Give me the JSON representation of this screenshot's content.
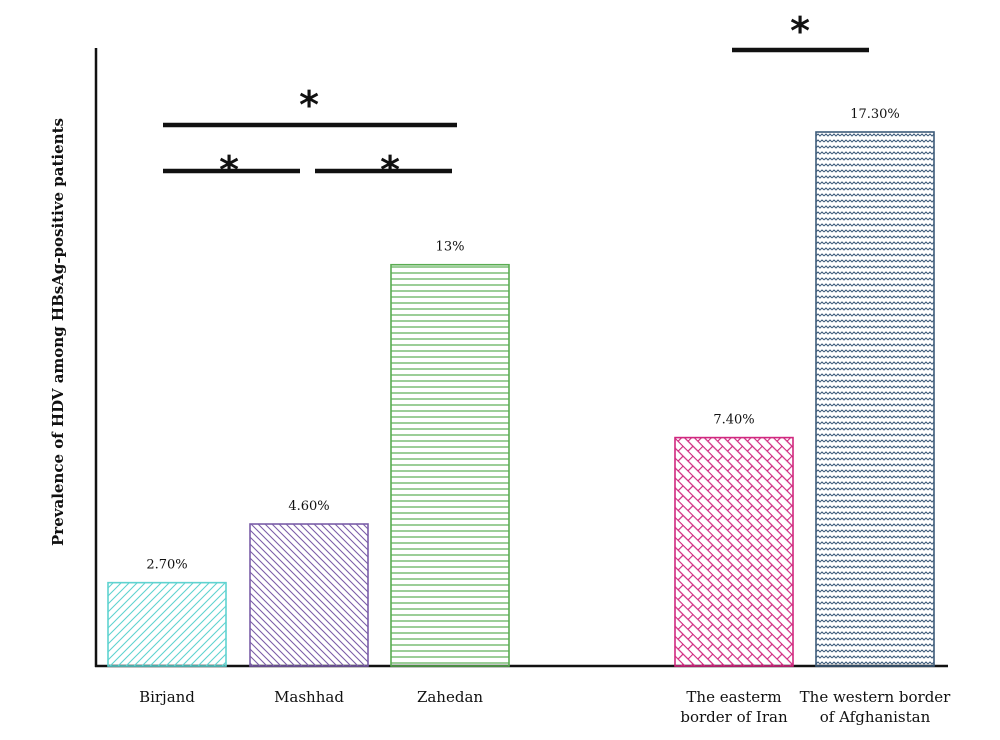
{
  "chart_data": {
    "type": "bar",
    "title": "",
    "xlabel": "",
    "ylabel": "Prevalence of HDV among HBsAg-positive patients",
    "ylim": [
      0,
      19.3
    ],
    "grid": false,
    "categories": [
      [
        "Birjand"
      ],
      [
        "Mashhad"
      ],
      [
        "Zahedan"
      ],
      [
        "The easterm",
        "border of Iran"
      ],
      [
        "The western border",
        "of Afghanistan"
      ]
    ],
    "values": [
      2.7,
      4.6,
      13,
      7.4,
      17.3
    ],
    "data_labels": [
      "2.70%",
      "4.60%",
      "13%",
      "7.40%",
      "17.30%"
    ],
    "colors": [
      "#5fd3d0",
      "#7b5ea8",
      "#5aac52",
      "#d0287f",
      "#3d5b7a"
    ],
    "patterns": [
      "diagonal-up",
      "diagonal-down",
      "horizontal",
      "brick",
      "zigzag"
    ],
    "significance": [
      {
        "from": 0,
        "to": 2,
        "symbol": "*"
      },
      {
        "from": 0,
        "to": 1,
        "symbol": "*"
      },
      {
        "from": 1,
        "to": 2,
        "symbol": "*"
      },
      {
        "from": 3,
        "to": 4,
        "symbol": "*"
      }
    ]
  }
}
